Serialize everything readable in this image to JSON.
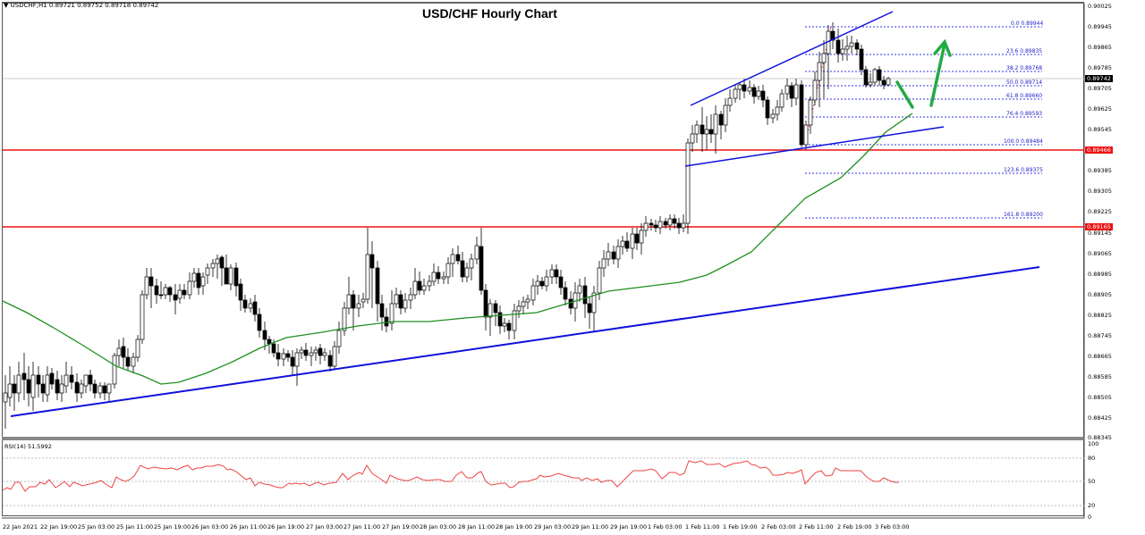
{
  "header": {
    "symbol_line": "USDCHF,H1  0.89721 0.89752 0.89718 0.89742"
  },
  "title": "USD/CHF Hourly Chart",
  "price_axis": [
    "0.90025",
    "0.89945",
    "0.89865",
    "0.89785",
    "0.89705",
    "0.89625",
    "0.89545",
    "0.89385",
    "0.89305",
    "0.89225",
    "0.89145",
    "0.89065",
    "0.88985",
    "0.88905",
    "0.88825",
    "0.88745",
    "0.88665",
    "0.88585",
    "0.88505",
    "0.88425",
    "0.88345"
  ],
  "price_tags": {
    "current": "0.89742",
    "resistance_1": "0.89466",
    "resistance_2": "0.89165"
  },
  "fib_levels": [
    {
      "label": "0.0 0.89944"
    },
    {
      "label": "23.6 0.89835"
    },
    {
      "label": "38.2 0.89768"
    },
    {
      "label": "50.0 0.89714"
    },
    {
      "label": "61.8 0.89660"
    },
    {
      "label": "76.4 0.89593"
    },
    {
      "label": "100.0 0.89484"
    },
    {
      "label": "123.6 0.89375"
    },
    {
      "label": "161.8 0.89200"
    }
  ],
  "rsi": {
    "label": "RSI(14) 51.5992",
    "axis": [
      "100",
      "80",
      "50",
      "20",
      "0"
    ]
  },
  "time_axis": [
    "22 Jan 2021",
    "22 Jan 19:00",
    "25 Jan 03:00",
    "25 Jan 11:00",
    "25 Jan 19:00",
    "26 Jan 03:00",
    "26 Jan 11:00",
    "26 Jan 19:00",
    "27 Jan 03:00",
    "27 Jan 11:00",
    "27 Jan 19:00",
    "28 Jan 03:00",
    "28 Jan 11:00",
    "28 Jan 19:00",
    "29 Jan 03:00",
    "29 Jan 11:00",
    "29 Jan 19:00",
    "1 Feb 03:00",
    "1 Feb 11:00",
    "1 Feb 19:00",
    "2 Feb 03:00",
    "2 Feb 11:00",
    "2 Feb 19:00",
    "3 Feb 03:00"
  ],
  "colors": {
    "support_line": "#1010dd",
    "resistance_line": "#ee1111",
    "ma_line": "#1f8f1f",
    "arrow": "#22aa44",
    "rsi_line": "#ee4444",
    "fib": "#3333ee"
  },
  "chart_data": {
    "type": "candlestick",
    "title": "USD/CHF Hourly Chart",
    "symbol": "USDCHF,H1",
    "ohlc_last": {
      "open": 0.89721,
      "high": 0.89752,
      "low": 0.89718,
      "close": 0.89742
    },
    "ylim": [
      0.88345,
      0.90025
    ],
    "x_range": [
      "22 Jan 2021",
      "3 Feb 03:00"
    ],
    "horizontal_levels": [
      0.89466,
      0.89165
    ],
    "fibonacci": [
      {
        "ratio": 0.0,
        "price": 0.89944
      },
      {
        "ratio": 23.6,
        "price": 0.89835
      },
      {
        "ratio": 38.2,
        "price": 0.89768
      },
      {
        "ratio": 50.0,
        "price": 0.89714
      },
      {
        "ratio": 61.8,
        "price": 0.8966
      },
      {
        "ratio": 76.4,
        "price": 0.89593
      },
      {
        "ratio": 100.0,
        "price": 0.89484
      },
      {
        "ratio": 123.6,
        "price": 0.89375
      },
      {
        "ratio": 161.8,
        "price": 0.892
      }
    ],
    "trendlines": [
      {
        "name": "main bullish trend line",
        "from": [
          "22 Jan 2021",
          0.8843
        ],
        "to": [
          "3 Feb 03:00",
          0.89
        ]
      },
      {
        "name": "channel lower",
        "from": [
          "1 Feb 03:00",
          0.8942
        ],
        "to": [
          "3 Feb 03:00",
          0.8956
        ]
      },
      {
        "name": "channel upper",
        "from": [
          "1 Feb 03:00",
          0.8965
        ],
        "to": [
          "2 Feb 19:00",
          0.9001
        ]
      }
    ],
    "moving_average_approx": [
      {
        "x": "22 Jan 2021",
        "y": 0.888
      },
      {
        "x": "25 Jan 11:00",
        "y": 0.8856
      },
      {
        "x": "26 Jan 19:00",
        "y": 0.8872
      },
      {
        "x": "28 Jan 11:00",
        "y": 0.8882
      },
      {
        "x": "29 Jan 19:00",
        "y": 0.8893
      },
      {
        "x": "1 Feb 11:00",
        "y": 0.89
      },
      {
        "x": "2 Feb 03:00",
        "y": 0.8925
      },
      {
        "x": "2 Feb 19:00",
        "y": 0.8948
      },
      {
        "x": "3 Feb 03:00",
        "y": 0.8962
      }
    ],
    "rsi": {
      "label": "RSI(14)",
      "last": 51.5992,
      "ylim": [
        0,
        100
      ],
      "levels": [
        20,
        50,
        80
      ]
    }
  }
}
